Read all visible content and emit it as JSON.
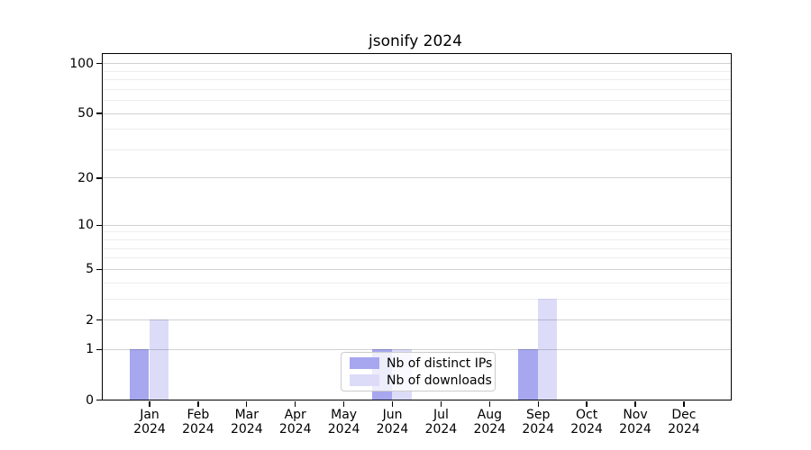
{
  "title": "jsonify 2024",
  "chart_data": {
    "type": "bar",
    "title": "jsonify 2024",
    "categories": [
      "Jan 2024",
      "Feb 2024",
      "Mar 2024",
      "Apr 2024",
      "May 2024",
      "Jun 2024",
      "Jul 2024",
      "Aug 2024",
      "Sep 2024",
      "Oct 2024",
      "Nov 2024",
      "Dec 2024"
    ],
    "series": [
      {
        "name": "Nb of distinct IPs",
        "color": "#a7a7f0",
        "values": [
          1,
          0,
          0,
          0,
          0,
          1,
          0,
          0,
          1,
          0,
          0,
          0
        ]
      },
      {
        "name": "Nb of downloads",
        "color": "#dcdcf8",
        "values": [
          2,
          0,
          0,
          0,
          0,
          1,
          0,
          0,
          3,
          0,
          0,
          0
        ]
      }
    ],
    "xlabel": "",
    "ylabel": "",
    "yscale": "log1p",
    "ylim": [
      0,
      114
    ],
    "y_major_ticks": [
      0,
      1,
      2,
      5,
      10,
      20,
      50,
      100
    ],
    "y_minor_gridlines": [
      3,
      4,
      6,
      7,
      8,
      9,
      30,
      40,
      60,
      70,
      80,
      90
    ],
    "grid": "horizontal",
    "legend_position": "lower center"
  },
  "colors": {
    "grid_major": "rgba(0,0,0,0.18)",
    "grid_minor": "rgba(0,0,0,0.07)",
    "spine": "#000000",
    "background": "#ffffff"
  }
}
